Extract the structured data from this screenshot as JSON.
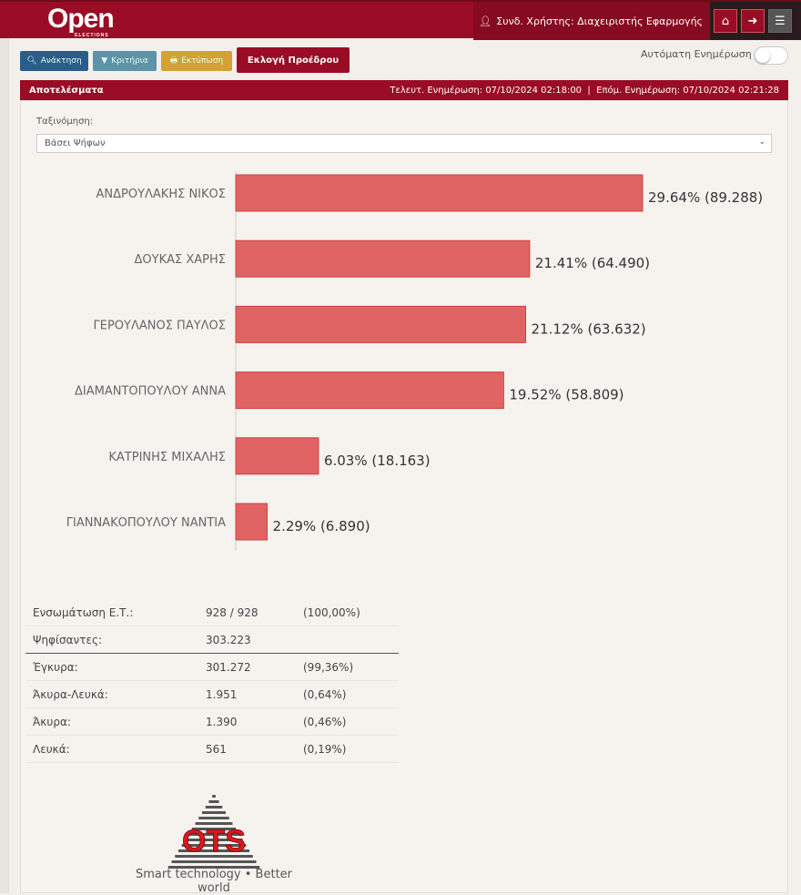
{
  "header": {
    "logo_text": "Open",
    "logo_sub": "ELECTIONS",
    "user_label": "Συνδ. Χρήστης: Διαχειριστής Εφαρμογής"
  },
  "toolbar": {
    "retrieve": "Ανάκτηση",
    "criteria": "Κριτήρια",
    "print": "Εκτύπωση",
    "election": "Εκλογή Προέδρου",
    "auto_update": "Αυτόματη Ενημέρωση",
    "auto_update_on": false
  },
  "panel": {
    "title": "Αποτελέσματα",
    "last_update": "Τελευτ. Ενημέρωση: 07/10/2024 02:18:00",
    "next_update": "Επόμ. Ενημέρωση: 07/10/2024 02:21:28"
  },
  "sort": {
    "label": "Ταξινόμηση:",
    "value": "Βάσει Ψήφων"
  },
  "chart_data": {
    "type": "bar",
    "orientation": "horizontal",
    "bar_color": "#e06464",
    "categories": [
      "ΑΝΔΡΟΥΛΑΚΗΣ ΝΙΚΟΣ",
      "ΔΟΥΚΑΣ ΧΑΡΗΣ",
      "ΓΕΡΟΥΛΑΝΟΣ ΠΑΥΛΟΣ",
      "ΔΙΑΜΑΝΤΟΠΟΥΛΟΥ ΑΝΝΑ",
      "ΚΑΤΡΙΝΗΣ ΜΙΧΑΛΗΣ",
      "ΓΙΑΝΝΑΚΟΠΟΥΛΟΥ ΝΑΝΤΙΑ"
    ],
    "values": [
      29.64,
      21.41,
      21.12,
      19.52,
      6.03,
      2.29
    ],
    "labels": [
      "29.64% (89.288)",
      "21.41% (64.490)",
      "21.12% (63.632)",
      "19.52% (58.809)",
      "6.03% (18.163)",
      "2.29% (6.890)"
    ]
  },
  "stats": [
    {
      "label": "Ενσωμάτωση Ε.Τ.:",
      "value": "928 / 928",
      "pct": "(100,00%)"
    },
    {
      "label": "Ψηφίσαντες:",
      "value": "303.223",
      "pct": ""
    },
    {
      "label": "Έγκυρα:",
      "value": "301.272",
      "pct": "(99,36%)"
    },
    {
      "label": "Άκυρα-Λευκά:",
      "value": "1.951",
      "pct": "(0,64%)"
    },
    {
      "label": "Άκυρα:",
      "value": "1.390",
      "pct": "(0,46%)"
    },
    {
      "label": "Λευκά:",
      "value": "561",
      "pct": "(0,19%)"
    }
  ],
  "footer": {
    "logo_text": "OTS",
    "tagline": "Smart technology • Better world"
  }
}
